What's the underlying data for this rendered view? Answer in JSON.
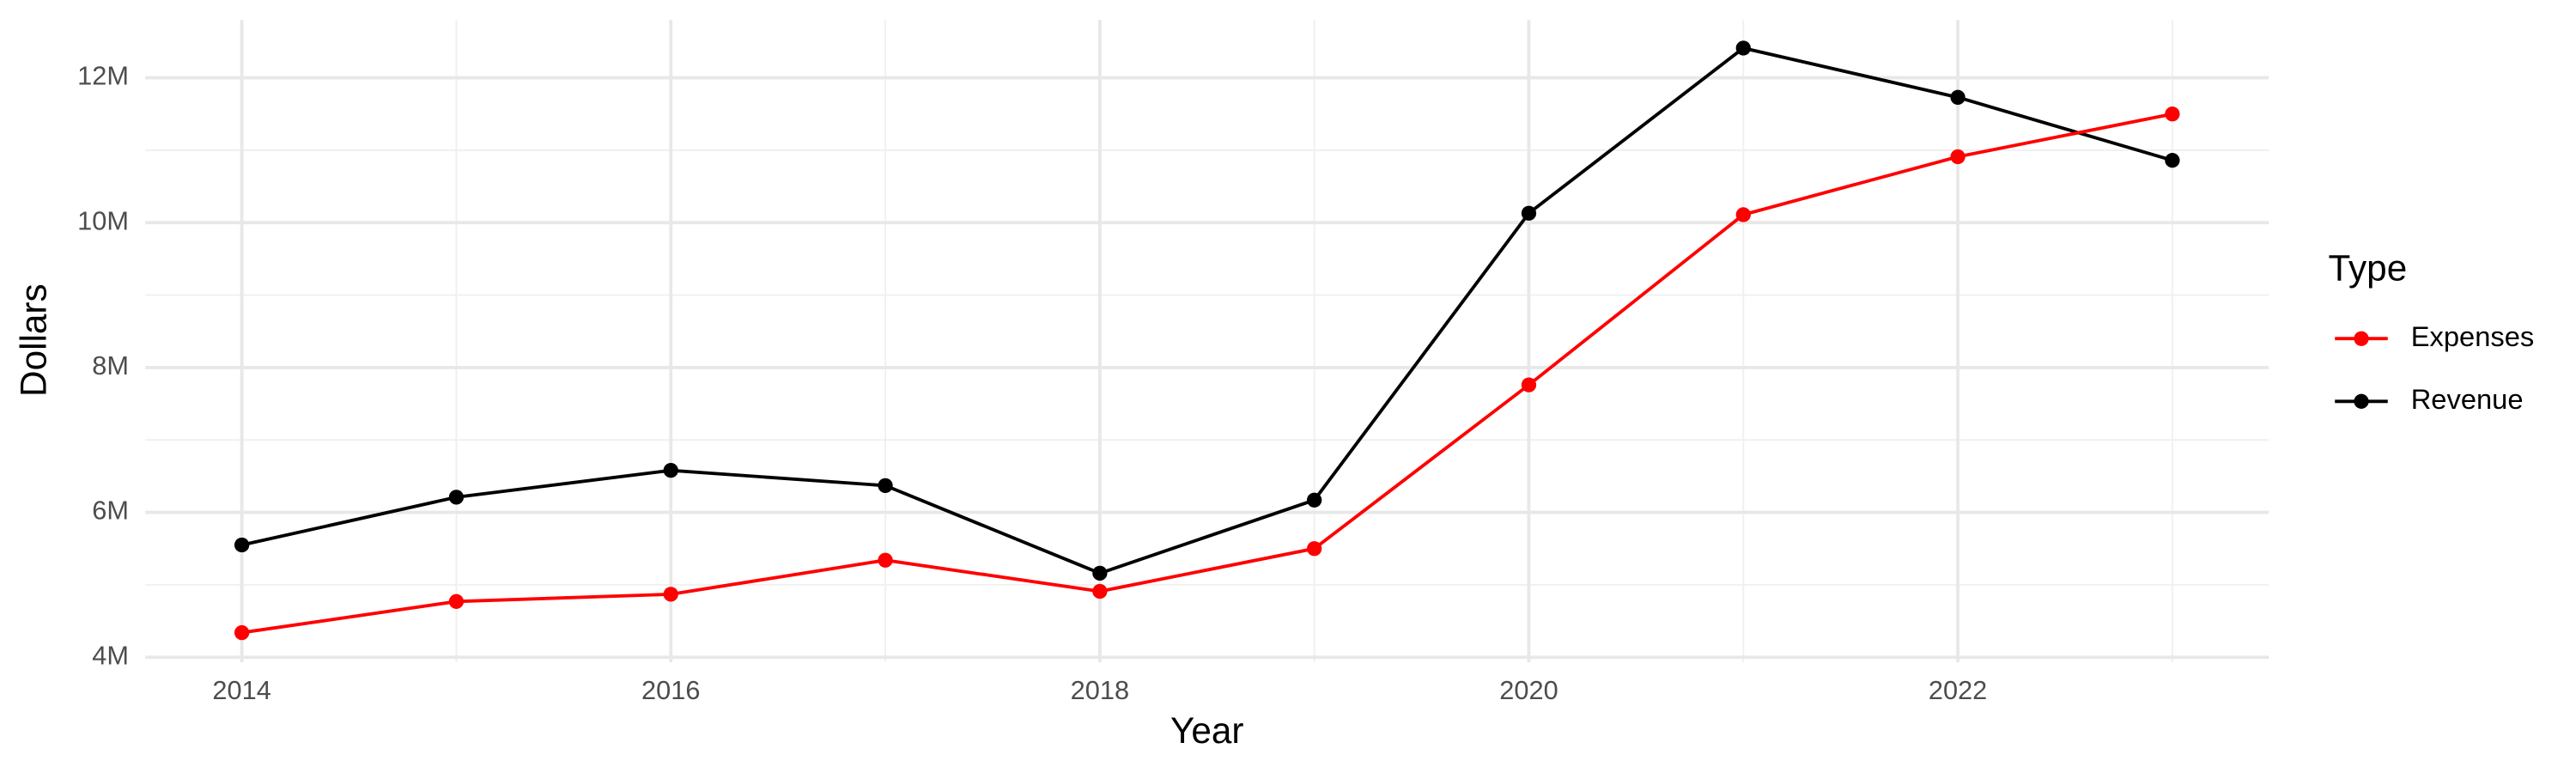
{
  "chart_data": {
    "type": "line",
    "x_label": "Year",
    "y_label": "Dollars",
    "x": [
      2014,
      2015,
      2016,
      2017,
      2018,
      2019,
      2020,
      2021,
      2022,
      2023
    ],
    "series": [
      {
        "name": "Expenses",
        "color": "#ff0000",
        "values": [
          4340000,
          4770000,
          4870000,
          5340000,
          4910000,
          5500000,
          7760000,
          10110000,
          10910000,
          11500000
        ]
      },
      {
        "name": "Revenue",
        "color": "#000000",
        "values": [
          5550000,
          6210000,
          6580000,
          6370000,
          5160000,
          6170000,
          10130000,
          12410000,
          11730000,
          10860000
        ]
      }
    ],
    "xlim": [
      2013.55,
      2023.45
    ],
    "xticks": [
      2014,
      2016,
      2018,
      2020,
      2022
    ],
    "ylim": [
      3930000,
      12800000
    ],
    "yticks": [
      {
        "value": 4000000,
        "label": "4M"
      },
      {
        "value": 6000000,
        "label": "6M"
      },
      {
        "value": 8000000,
        "label": "8M"
      },
      {
        "value": 10000000,
        "label": "10M"
      },
      {
        "value": 12000000,
        "label": "12M"
      }
    ],
    "grid": true,
    "legend_title": "Type",
    "legend_position": "right"
  }
}
